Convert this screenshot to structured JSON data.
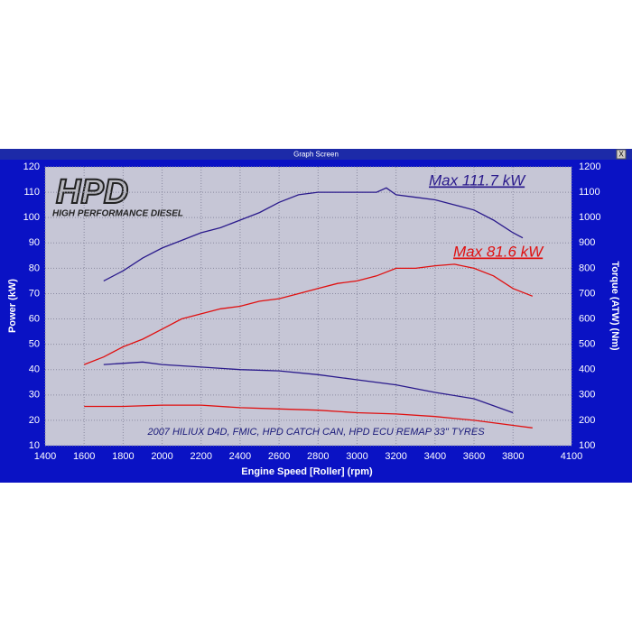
{
  "window": {
    "title": "Graph Screen",
    "close": "X"
  },
  "chart_data": {
    "type": "line",
    "x_label": "Engine Speed [Roller] (rpm)",
    "y_label": "Power (kW)",
    "y2_label": "Torque (ATW) (Nm)",
    "logo": "HPD",
    "logo_subtitle": "HIGH PERFORMANCE DIESEL",
    "annotations": [
      "Max 111.7 kW",
      "Max 81.6 kW",
      "2007 HILIUX D4D, FMIC, HPD CATCH CAN, HPD ECU REMAP 33\" TYRES"
    ],
    "xlim": [
      1400,
      4100
    ],
    "xticks": [
      1400,
      1600,
      1800,
      2000,
      2200,
      2400,
      2600,
      2800,
      3000,
      3200,
      3400,
      3600,
      3800,
      4100
    ],
    "ylim": [
      10,
      120
    ],
    "yticks": [
      10,
      20,
      30,
      40,
      50,
      60,
      70,
      80,
      90,
      100,
      110,
      120
    ],
    "y2lim": [
      100,
      1200
    ],
    "y2ticks": [
      100,
      200,
      300,
      400,
      500,
      600,
      700,
      800,
      900,
      1000,
      1100,
      1200
    ],
    "grid": true,
    "series": [
      {
        "color": "#2a1a8c",
        "x": [
          1700,
          1800,
          1900,
          2000,
          2100,
          2200,
          2300,
          2400,
          2500,
          2600,
          2700,
          2800,
          2900,
          3000,
          3100,
          3150,
          3200,
          3300,
          3400,
          3500,
          3600,
          3700,
          3800,
          3850
        ],
        "values": [
          75,
          79,
          84,
          88,
          91,
          94,
          96,
          99,
          102,
          106,
          109,
          110,
          110,
          110,
          110,
          111.7,
          109,
          108,
          107,
          105,
          103,
          99,
          94,
          92
        ]
      },
      {
        "color": "#e01010",
        "x": [
          1600,
          1700,
          1800,
          1900,
          2000,
          2100,
          2200,
          2300,
          2400,
          2500,
          2600,
          2700,
          2800,
          2900,
          3000,
          3100,
          3200,
          3300,
          3400,
          3500,
          3600,
          3700,
          3800,
          3900
        ],
        "values": [
          42,
          45,
          49,
          52,
          56,
          60,
          62,
          64,
          65,
          67,
          68,
          70,
          72,
          74,
          75,
          77,
          80,
          80,
          81,
          81.6,
          80,
          77,
          72,
          69
        ]
      },
      {
        "color": "#2a1a8c",
        "axis": "y2",
        "x": [
          1700,
          1900,
          2000,
          2200,
          2400,
          2600,
          2800,
          3000,
          3200,
          3400,
          3600,
          3800
        ],
        "values": [
          420,
          430,
          420,
          410,
          400,
          395,
          380,
          360,
          340,
          310,
          285,
          230
        ]
      },
      {
        "color": "#e01010",
        "axis": "y2",
        "x": [
          1600,
          1800,
          2000,
          2200,
          2400,
          2600,
          2800,
          3000,
          3200,
          3400,
          3600,
          3800,
          3900
        ],
        "values": [
          255,
          255,
          260,
          260,
          250,
          245,
          240,
          230,
          225,
          215,
          200,
          180,
          170
        ]
      }
    ]
  }
}
